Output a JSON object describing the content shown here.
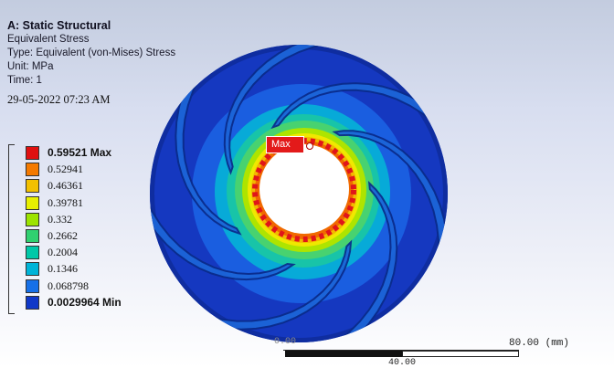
{
  "info": {
    "title": "A: Static Structural",
    "result": "Equivalent Stress",
    "type": "Type: Equivalent (von-Mises) Stress",
    "unit": "Unit: MPa",
    "time": "Time: 1",
    "datetime": "29-05-2022 07:23 AM"
  },
  "legend": [
    {
      "label": "0.59521 Max",
      "color": "#e01010"
    },
    {
      "label": "0.52941",
      "color": "#f47a00"
    },
    {
      "label": "0.46361",
      "color": "#f2c000"
    },
    {
      "label": "0.39781",
      "color": "#e8f000"
    },
    {
      "label": "0.332",
      "color": "#9ce400"
    },
    {
      "label": "0.2662",
      "color": "#30d070"
    },
    {
      "label": "0.2004",
      "color": "#00c8a8"
    },
    {
      "label": "0.1346",
      "color": "#00b4d8"
    },
    {
      "label": "0.068798",
      "color": "#1670e8"
    },
    {
      "label": "0.0029964 Min",
      "color": "#1038c8"
    }
  ],
  "probe": {
    "label": "Max"
  },
  "scale": {
    "left_label": "0.00",
    "right_label": "80.00 (mm)",
    "mid_label": "40.00"
  }
}
